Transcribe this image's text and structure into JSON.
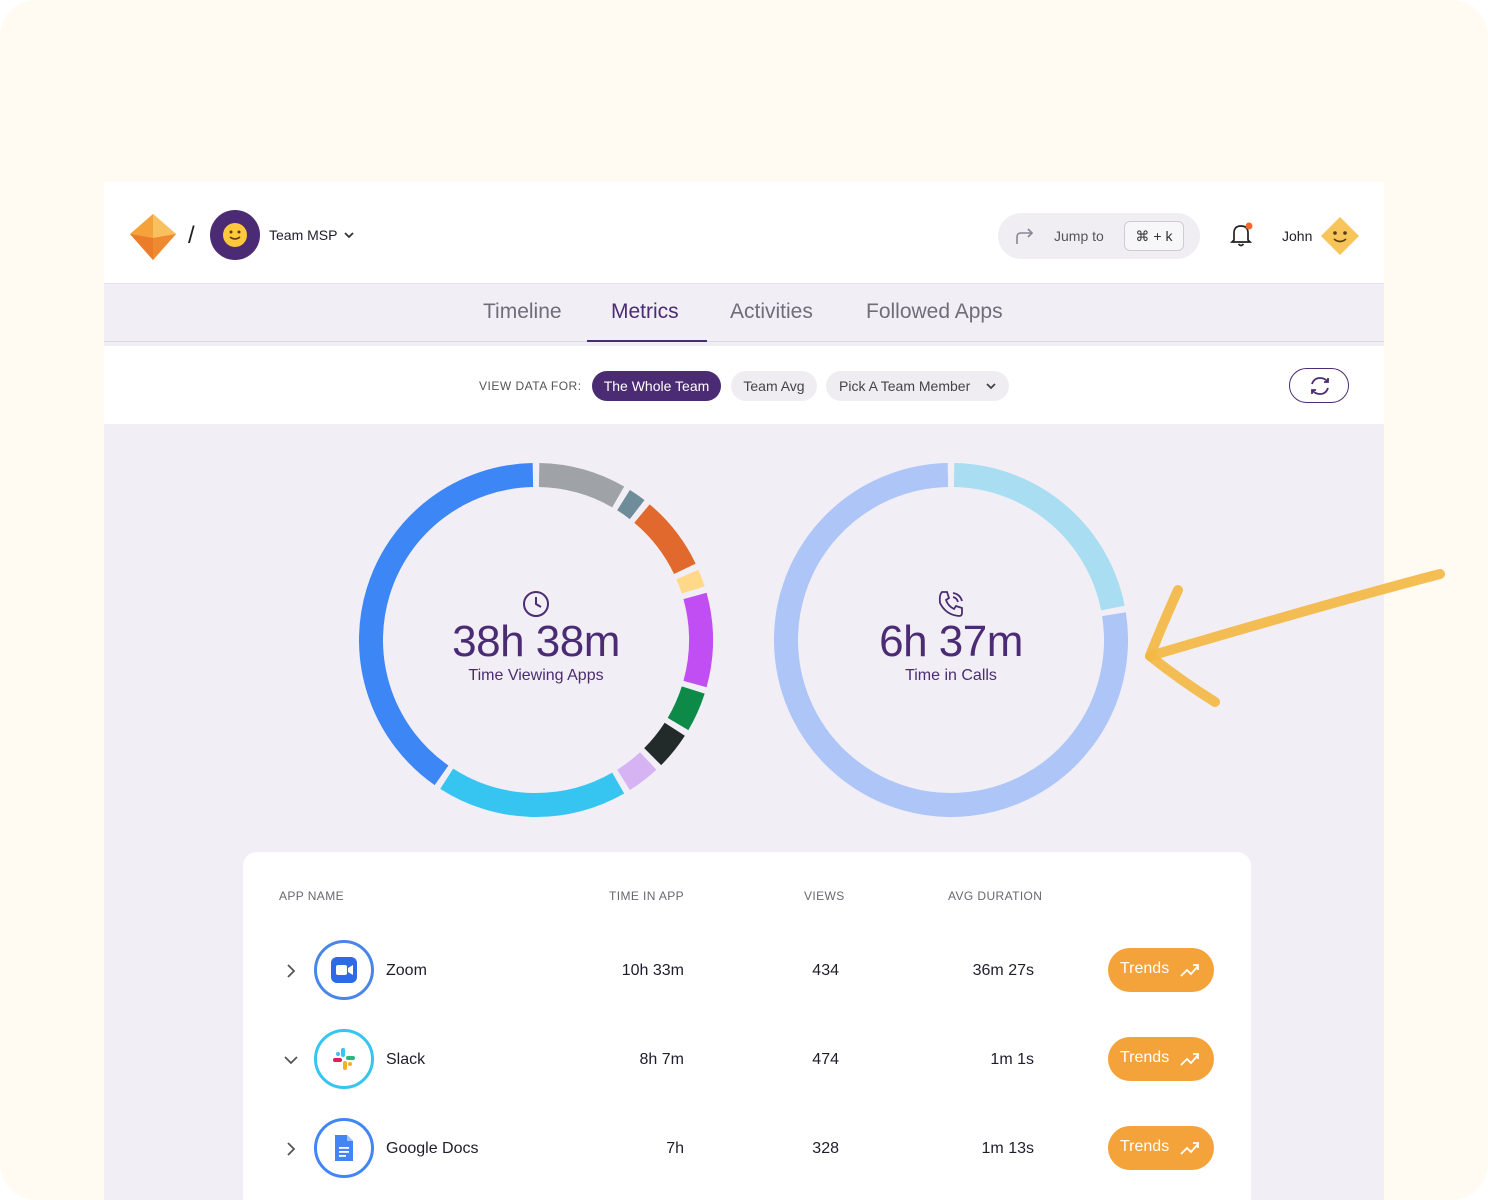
{
  "header": {
    "breadcrumb_separator": "/",
    "team_name": "Team MSP",
    "jump_label": "Jump to",
    "jump_shortcut": "⌘ + k",
    "user_name": "John"
  },
  "tabs": [
    {
      "label": "Timeline"
    },
    {
      "label": "Metrics",
      "active": true
    },
    {
      "label": "Activities"
    },
    {
      "label": "Followed Apps"
    }
  ],
  "filters": {
    "label": "VIEW DATA FOR:",
    "options": [
      {
        "label": "The Whole Team",
        "selected": true
      },
      {
        "label": "Team Avg"
      },
      {
        "label": "Pick A Team Member"
      }
    ]
  },
  "donuts": [
    {
      "value": "38h 38m",
      "label": "Time Viewing Apps",
      "icon": "clock-icon",
      "segments": [
        {
          "fraction": 0.086,
          "color": "#9fa3a8"
        },
        {
          "fraction": 0.022,
          "color": "#6f8c9a"
        },
        {
          "fraction": 0.074,
          "color": "#e2692d"
        },
        {
          "fraction": 0.022,
          "color": "#ffd88a"
        },
        {
          "fraction": 0.092,
          "color": "#c14ef2"
        },
        {
          "fraction": 0.042,
          "color": "#0d8a47"
        },
        {
          "fraction": 0.04,
          "color": "#222a2a"
        },
        {
          "fraction": 0.036,
          "color": "#d6b3f2"
        },
        {
          "fraction": 0.18,
          "color": "#36c5f0"
        },
        {
          "fraction": 0.406,
          "color": "#3d86f5"
        }
      ]
    },
    {
      "value": "6h 37m",
      "label": "Time in Calls",
      "icon": "phone-call-icon",
      "segments": [
        {
          "fraction": 0.222,
          "color": "#a8ddf2"
        },
        {
          "fraction": 0.778,
          "color": "#adc5f7"
        }
      ]
    }
  ],
  "table": {
    "columns": [
      "APP NAME",
      "TIME IN APP",
      "VIEWS",
      "AVG DURATION"
    ],
    "trends_label": "Trends",
    "rows": [
      {
        "app": "Zoom",
        "icon": "zoom-icon",
        "time": "10h 33m",
        "views": "434",
        "avg": "36m 27s",
        "expanded": false
      },
      {
        "app": "Slack",
        "icon": "slack-icon",
        "time": "8h 7m",
        "views": "474",
        "avg": "1m 1s",
        "expanded": true
      },
      {
        "app": "Google Docs",
        "icon": "google-docs-icon",
        "time": "7h",
        "views": "328",
        "avg": "1m 13s",
        "expanded": false
      }
    ]
  },
  "colors": {
    "brand": "#4b2c74",
    "accent_orange": "#f4a23a",
    "background": "#f1eff5"
  }
}
